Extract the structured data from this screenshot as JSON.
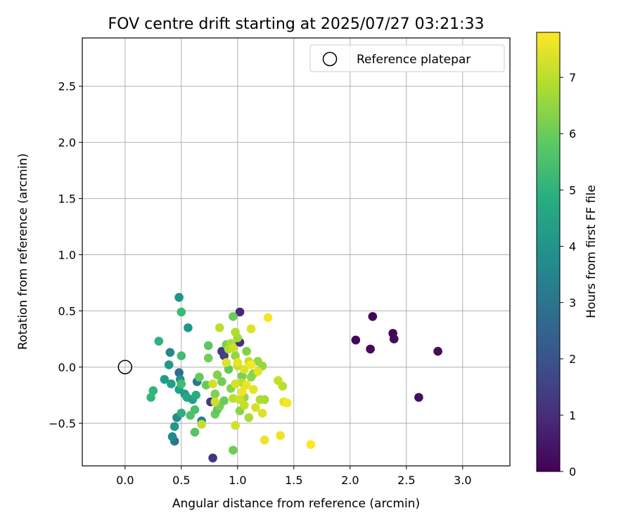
{
  "chart_data": {
    "type": "scatter",
    "title": "FOV centre drift starting at 2025/07/27 03:21:33",
    "xlabel": "Angular distance from reference (arcmin)",
    "ylabel": "Rotation from reference (arcmin)",
    "xlim": [
      -0.38,
      3.42
    ],
    "ylim": [
      -0.88,
      2.93
    ],
    "xticks": [
      "0.0",
      "0.5",
      "1.0",
      "1.5",
      "2.0",
      "2.5",
      "3.0"
    ],
    "xtick_values": [
      0,
      0.5,
      1,
      1.5,
      2,
      2.5,
      3
    ],
    "yticks": [
      "−0.5",
      "0.0",
      "0.5",
      "1.0",
      "1.5",
      "2.0",
      "2.5"
    ],
    "ytick_values": [
      -0.5,
      0,
      0.5,
      1,
      1.5,
      2,
      2.5
    ],
    "grid": true,
    "legend": {
      "placement": "top-right",
      "entries": [
        {
          "label": "Reference platepar",
          "marker": "open-circle"
        }
      ]
    },
    "reference_point": {
      "x": 0.0,
      "y": 0.0
    },
    "colorbar": {
      "label": "Hours from first FF file",
      "colormap": "viridis",
      "range": [
        0,
        7.8
      ],
      "ticks": [
        "0",
        "1",
        "2",
        "3",
        "4",
        "5",
        "6",
        "7"
      ],
      "tick_values": [
        0,
        1,
        2,
        3,
        4,
        5,
        6,
        7
      ]
    },
    "points": [
      {
        "x": 2.2,
        "y": 0.45,
        "c": 0.1
      },
      {
        "x": 2.05,
        "y": 0.24,
        "c": 0.1
      },
      {
        "x": 2.18,
        "y": 0.16,
        "c": 0.15
      },
      {
        "x": 2.38,
        "y": 0.3,
        "c": 0.12
      },
      {
        "x": 2.39,
        "y": 0.25,
        "c": 0.2
      },
      {
        "x": 2.78,
        "y": 0.14,
        "c": 0.25
      },
      {
        "x": 2.61,
        "y": -0.27,
        "c": 0.3
      },
      {
        "x": 1.02,
        "y": 0.49,
        "c": 0.9
      },
      {
        "x": 1.02,
        "y": 0.22,
        "c": 1.1
      },
      {
        "x": 0.86,
        "y": 0.14,
        "c": 1.4
      },
      {
        "x": 0.88,
        "y": 0.1,
        "c": 1.5
      },
      {
        "x": 0.76,
        "y": -0.31,
        "c": 1.3
      },
      {
        "x": 0.78,
        "y": -0.81,
        "c": 1.2
      },
      {
        "x": 0.48,
        "y": -0.05,
        "c": 2.8
      },
      {
        "x": 0.44,
        "y": -0.66,
        "c": 3.0
      },
      {
        "x": 0.64,
        "y": -0.13,
        "c": 3.1
      },
      {
        "x": 0.68,
        "y": -0.48,
        "c": 3.3
      },
      {
        "x": 0.4,
        "y": 0.13,
        "c": 3.6
      },
      {
        "x": 0.42,
        "y": -0.62,
        "c": 3.7
      },
      {
        "x": 0.46,
        "y": -0.45,
        "c": 3.8
      },
      {
        "x": 0.49,
        "y": -0.11,
        "c": 3.9
      },
      {
        "x": 0.48,
        "y": 0.62,
        "c": 4.0
      },
      {
        "x": 0.56,
        "y": 0.35,
        "c": 4.1
      },
      {
        "x": 0.39,
        "y": 0.02,
        "c": 4.2
      },
      {
        "x": 0.35,
        "y": -0.11,
        "c": 4.3
      },
      {
        "x": 0.41,
        "y": -0.15,
        "c": 4.4
      },
      {
        "x": 0.44,
        "y": -0.53,
        "c": 4.2
      },
      {
        "x": 0.48,
        "y": -0.2,
        "c": 4.5
      },
      {
        "x": 0.53,
        "y": -0.24,
        "c": 4.3
      },
      {
        "x": 0.55,
        "y": -0.27,
        "c": 4.6
      },
      {
        "x": 0.6,
        "y": -0.29,
        "c": 4.4
      },
      {
        "x": 0.63,
        "y": -0.25,
        "c": 4.8
      },
      {
        "x": 0.5,
        "y": -0.41,
        "c": 4.9
      },
      {
        "x": 0.3,
        "y": 0.23,
        "c": 5.0
      },
      {
        "x": 0.25,
        "y": -0.21,
        "c": 5.1
      },
      {
        "x": 0.23,
        "y": -0.27,
        "c": 5.2
      },
      {
        "x": 0.5,
        "y": 0.49,
        "c": 5.3
      },
      {
        "x": 0.5,
        "y": 0.1,
        "c": 5.4
      },
      {
        "x": 0.5,
        "y": -0.15,
        "c": 5.4
      },
      {
        "x": 0.62,
        "y": -0.38,
        "c": 5.5
      },
      {
        "x": 0.58,
        "y": -0.43,
        "c": 5.6
      },
      {
        "x": 0.62,
        "y": -0.58,
        "c": 5.7
      },
      {
        "x": 0.66,
        "y": -0.09,
        "c": 5.9
      },
      {
        "x": 0.72,
        "y": -0.16,
        "c": 6.0
      },
      {
        "x": 0.74,
        "y": 0.19,
        "c": 5.8
      },
      {
        "x": 0.74,
        "y": 0.08,
        "c": 6.1
      },
      {
        "x": 0.8,
        "y": -0.42,
        "c": 6.0
      },
      {
        "x": 0.82,
        "y": -0.38,
        "c": 5.8
      },
      {
        "x": 0.84,
        "y": -0.35,
        "c": 6.2
      },
      {
        "x": 0.88,
        "y": -0.3,
        "c": 6.0
      },
      {
        "x": 0.8,
        "y": -0.24,
        "c": 6.3
      },
      {
        "x": 0.82,
        "y": -0.07,
        "c": 6.3
      },
      {
        "x": 0.86,
        "y": -0.13,
        "c": 6.1
      },
      {
        "x": 0.9,
        "y": 0.2,
        "c": 6.2
      },
      {
        "x": 0.92,
        "y": -0.02,
        "c": 5.9
      },
      {
        "x": 0.94,
        "y": -0.19,
        "c": 6.4
      },
      {
        "x": 0.96,
        "y": 0.45,
        "c": 6.0
      },
      {
        "x": 0.96,
        "y": -0.74,
        "c": 6.1
      },
      {
        "x": 0.98,
        "y": 0.1,
        "c": 6.5
      },
      {
        "x": 1.0,
        "y": 0.26,
        "c": 6.7
      },
      {
        "x": 1.02,
        "y": -0.39,
        "c": 6.4
      },
      {
        "x": 1.04,
        "y": -0.08,
        "c": 6.2
      },
      {
        "x": 1.06,
        "y": -0.27,
        "c": 6.6
      },
      {
        "x": 1.08,
        "y": 0.14,
        "c": 6.3
      },
      {
        "x": 1.1,
        "y": -0.45,
        "c": 6.8
      },
      {
        "x": 1.12,
        "y": -0.09,
        "c": 6.5
      },
      {
        "x": 1.14,
        "y": -0.06,
        "c": 6.4
      },
      {
        "x": 1.18,
        "y": 0.05,
        "c": 6.5
      },
      {
        "x": 1.2,
        "y": -0.29,
        "c": 6.9
      },
      {
        "x": 1.22,
        "y": 0.01,
        "c": 6.6
      },
      {
        "x": 1.24,
        "y": -0.29,
        "c": 6.8
      },
      {
        "x": 0.84,
        "y": 0.35,
        "c": 7.0
      },
      {
        "x": 0.92,
        "y": 0.16,
        "c": 6.9
      },
      {
        "x": 0.94,
        "y": 0.21,
        "c": 6.8
      },
      {
        "x": 0.96,
        "y": -0.28,
        "c": 7.0
      },
      {
        "x": 0.98,
        "y": 0.31,
        "c": 6.9
      },
      {
        "x": 1.0,
        "y": 0.01,
        "c": 7.1
      },
      {
        "x": 1.02,
        "y": -0.29,
        "c": 7.2
      },
      {
        "x": 1.04,
        "y": -0.14,
        "c": 7.0
      },
      {
        "x": 1.06,
        "y": -0.34,
        "c": 7.1
      },
      {
        "x": 0.98,
        "y": -0.52,
        "c": 7.3
      },
      {
        "x": 1.1,
        "y": 0.05,
        "c": 7.2
      },
      {
        "x": 1.12,
        "y": 0.34,
        "c": 7.4
      },
      {
        "x": 1.14,
        "y": -0.2,
        "c": 7.5
      },
      {
        "x": 1.16,
        "y": -0.36,
        "c": 7.3
      },
      {
        "x": 1.22,
        "y": -0.41,
        "c": 7.4
      },
      {
        "x": 1.24,
        "y": -0.65,
        "c": 7.6
      },
      {
        "x": 1.27,
        "y": 0.44,
        "c": 7.7
      },
      {
        "x": 1.36,
        "y": -0.12,
        "c": 7.1
      },
      {
        "x": 1.38,
        "y": -0.61,
        "c": 7.6
      },
      {
        "x": 1.4,
        "y": -0.17,
        "c": 7.0
      },
      {
        "x": 1.41,
        "y": -0.31,
        "c": 7.5
      },
      {
        "x": 1.44,
        "y": -0.32,
        "c": 7.7
      },
      {
        "x": 1.65,
        "y": -0.69,
        "c": 7.8
      },
      {
        "x": 0.96,
        "y": 0.17,
        "c": 7.2
      },
      {
        "x": 0.98,
        "y": -0.15,
        "c": 7.3
      },
      {
        "x": 1.0,
        "y": 0.04,
        "c": 7.5
      },
      {
        "x": 1.04,
        "y": -0.22,
        "c": 7.6
      },
      {
        "x": 1.06,
        "y": -0.02,
        "c": 7.4
      },
      {
        "x": 1.08,
        "y": -0.16,
        "c": 7.6
      },
      {
        "x": 1.12,
        "y": 0.02,
        "c": 7.7
      },
      {
        "x": 1.18,
        "y": -0.04,
        "c": 7.5
      },
      {
        "x": 0.9,
        "y": 0.04,
        "c": 7.4
      },
      {
        "x": 0.78,
        "y": -0.15,
        "c": 7.3
      },
      {
        "x": 0.8,
        "y": -0.31,
        "c": 7.2
      },
      {
        "x": 0.68,
        "y": -0.51,
        "c": 7.1
      }
    ]
  }
}
